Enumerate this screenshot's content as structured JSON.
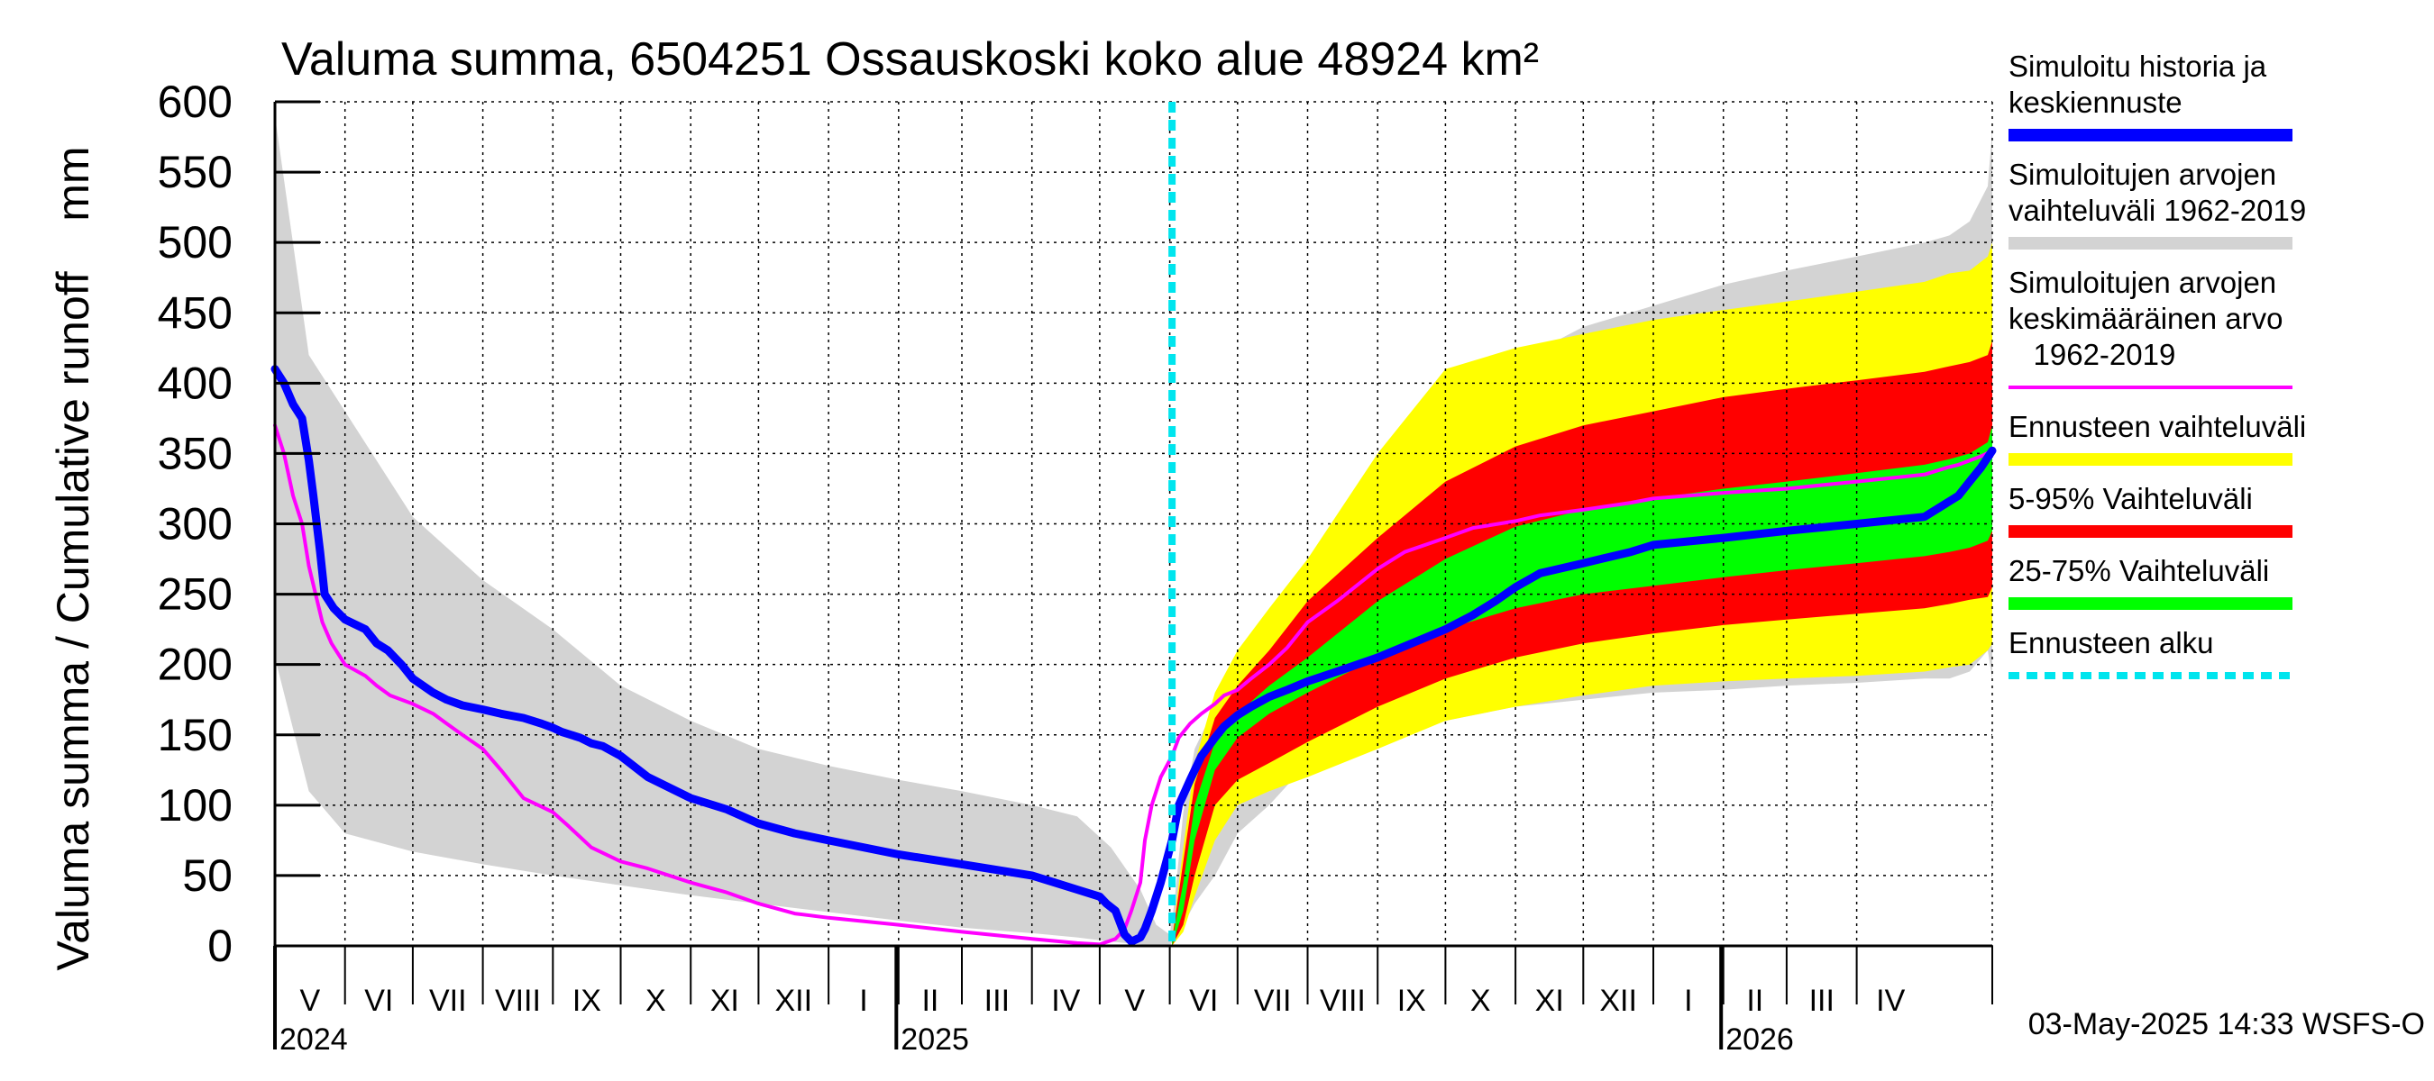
{
  "chart_data": {
    "type": "area",
    "title": "Valuma summa, 6504251 Ossauskoski koko alue 48924 km²",
    "ylabel": "Valuma summa / Cumulative runoff    mm",
    "ylim": [
      0,
      600
    ],
    "yticks": [
      0,
      50,
      100,
      150,
      200,
      250,
      300,
      350,
      400,
      450,
      500,
      550,
      600
    ],
    "x_unit": "days since 2024-04-01",
    "xlim": [
      0,
      760
    ],
    "forecast_start_day": 397,
    "years": [
      {
        "label": "2024",
        "day": 0
      },
      {
        "label": "2025",
        "day": 275
      },
      {
        "label": "2026",
        "day": 640
      }
    ],
    "months": [
      {
        "label": "V",
        "start": 0,
        "end": 31
      },
      {
        "label": "VI",
        "start": 31,
        "end": 61
      },
      {
        "label": "VII",
        "start": 61,
        "end": 92
      },
      {
        "label": "VIII",
        "start": 92,
        "end": 123
      },
      {
        "label": "IX",
        "start": 123,
        "end": 153
      },
      {
        "label": "X",
        "start": 153,
        "end": 184
      },
      {
        "label": "XI",
        "start": 184,
        "end": 214
      },
      {
        "label": "XII",
        "start": 214,
        "end": 245
      },
      {
        "label": "I",
        "start": 245,
        "end": 276
      },
      {
        "label": "II",
        "start": 276,
        "end": 304
      },
      {
        "label": "III",
        "start": 304,
        "end": 335
      },
      {
        "label": "IV",
        "start": 335,
        "end": 365
      },
      {
        "label": "V",
        "start": 365,
        "end": 396
      },
      {
        "label": "VI",
        "start": 396,
        "end": 426
      },
      {
        "label": "VII",
        "start": 426,
        "end": 457
      },
      {
        "label": "VIII",
        "start": 457,
        "end": 488
      },
      {
        "label": "IX",
        "start": 488,
        "end": 518
      },
      {
        "label": "X",
        "start": 518,
        "end": 549
      },
      {
        "label": "XI",
        "start": 549,
        "end": 579
      },
      {
        "label": "XII",
        "start": 579,
        "end": 610
      },
      {
        "label": "I",
        "start": 610,
        "end": 641
      },
      {
        "label": "II",
        "start": 641,
        "end": 669
      },
      {
        "label": "III",
        "start": 669,
        "end": 700
      },
      {
        "label": "IV",
        "start": 700,
        "end": 730
      }
    ],
    "bands": [
      {
        "name": "Simuloitujen arvojen vaihteluväli 1962-2019",
        "color": "#d3d3d3",
        "x": [
          0,
          15,
          31,
          61,
          92,
          123,
          153,
          184,
          214,
          245,
          276,
          304,
          335,
          355,
          370,
          383,
          390,
          396,
          398,
          402,
          407,
          416,
          426,
          440,
          457,
          488,
          518,
          549,
          579,
          610,
          641,
          669,
          700,
          730,
          741,
          750,
          758,
          760
        ],
        "upper": [
          590,
          420,
          380,
          305,
          260,
          225,
          185,
          160,
          140,
          128,
          118,
          110,
          100,
          92,
          70,
          40,
          15,
          8,
          30,
          95,
          140,
          170,
          200,
          228,
          255,
          300,
          375,
          415,
          440,
          455,
          470,
          480,
          490,
          500,
          505,
          515,
          540,
          580
        ],
        "lower": [
          205,
          110,
          80,
          67,
          58,
          50,
          43,
          36,
          30,
          24,
          18,
          13,
          9,
          6,
          3,
          1,
          0,
          0,
          5,
          15,
          30,
          50,
          80,
          100,
          130,
          150,
          160,
          170,
          175,
          180,
          182,
          185,
          187,
          190,
          190,
          195,
          210,
          190
        ]
      },
      {
        "name": "Ennusteen vaihteluväli",
        "color": "#ffff00",
        "x": [
          397,
          402,
          407,
          416,
          426,
          440,
          457,
          488,
          518,
          549,
          579,
          610,
          641,
          669,
          700,
          730,
          741,
          750,
          758,
          760
        ],
        "upper": [
          5,
          70,
          130,
          180,
          210,
          240,
          275,
          350,
          410,
          425,
          435,
          445,
          452,
          458,
          465,
          472,
          478,
          480,
          490,
          500
        ],
        "lower": [
          0,
          10,
          35,
          75,
          100,
          110,
          120,
          140,
          160,
          170,
          178,
          185,
          188,
          190,
          192,
          195,
          198,
          200,
          210,
          215
        ]
      },
      {
        "name": "5-95% Vaihteluväli",
        "color": "#ff0000",
        "x": [
          397,
          402,
          407,
          416,
          426,
          440,
          457,
          488,
          518,
          549,
          579,
          610,
          641,
          669,
          700,
          730,
          741,
          750,
          758,
          760
        ],
        "upper": [
          4,
          60,
          115,
          162,
          185,
          210,
          245,
          290,
          330,
          355,
          370,
          380,
          390,
          396,
          402,
          408,
          412,
          415,
          420,
          430
        ],
        "lower": [
          0,
          15,
          50,
          100,
          118,
          130,
          145,
          170,
          190,
          205,
          215,
          222,
          228,
          232,
          236,
          240,
          243,
          246,
          248,
          255
        ]
      },
      {
        "name": "25-75% Vaihteluväli",
        "color": "#00ff00",
        "x": [
          397,
          402,
          407,
          416,
          426,
          440,
          457,
          488,
          518,
          549,
          579,
          610,
          641,
          669,
          700,
          730,
          741,
          750,
          758,
          760
        ],
        "upper": [
          3,
          45,
          100,
          145,
          165,
          185,
          205,
          245,
          275,
          298,
          310,
          318,
          325,
          330,
          336,
          342,
          346,
          350,
          358,
          370
        ],
        "lower": [
          0,
          25,
          75,
          125,
          148,
          165,
          180,
          205,
          225,
          240,
          250,
          256,
          262,
          267,
          272,
          277,
          280,
          283,
          288,
          295
        ]
      }
    ],
    "series": [
      {
        "name": "Simuloitujen arvojen keskimääräinen arvo 1962-2019",
        "color": "#ff00ff",
        "x": [
          0,
          4,
          8,
          12,
          15,
          18,
          21,
          25,
          31,
          40,
          45,
          51,
          61,
          70,
          76,
          83,
          92,
          100,
          110,
          123,
          130,
          140,
          153,
          165,
          184,
          200,
          214,
          230,
          245,
          276,
          304,
          335,
          355,
          365,
          372,
          376,
          379,
          383,
          385,
          388,
          392,
          397,
          400,
          405,
          410,
          416,
          420,
          426,
          432,
          440,
          448,
          457,
          470,
          488,
          500,
          518,
          530,
          549,
          560,
          579,
          600,
          610,
          641,
          669,
          700,
          730,
          740,
          745,
          750,
          755,
          760
        ],
        "values": [
          370,
          350,
          320,
          300,
          270,
          250,
          230,
          215,
          200,
          192,
          185,
          178,
          172,
          165,
          158,
          150,
          140,
          125,
          105,
          95,
          85,
          70,
          60,
          55,
          45,
          38,
          30,
          23,
          20,
          15,
          10,
          5,
          2,
          1,
          5,
          12,
          25,
          45,
          75,
          100,
          120,
          135,
          148,
          158,
          165,
          172,
          178,
          182,
          190,
          200,
          212,
          230,
          245,
          268,
          280,
          290,
          297,
          302,
          306,
          310,
          315,
          318,
          322,
          325,
          330,
          335,
          340,
          342,
          345,
          348,
          352
        ]
      },
      {
        "name": "Simuloitu historia ja keskiennuste",
        "color": "#0000ff",
        "x": [
          0,
          4,
          8,
          12,
          15,
          17,
          20,
          22,
          26,
          31,
          40,
          45,
          50,
          56,
          61,
          70,
          76,
          83,
          92,
          100,
          110,
          118,
          123,
          127,
          135,
          140,
          145,
          153,
          165,
          184,
          200,
          214,
          230,
          245,
          276,
          304,
          335,
          345,
          355,
          365,
          368,
          372,
          376,
          379,
          383,
          385,
          388,
          392,
          397,
          400,
          405,
          410,
          416,
          420,
          426,
          432,
          440,
          448,
          457,
          470,
          488,
          500,
          518,
          530,
          540,
          549,
          560,
          579,
          600,
          610,
          641,
          669,
          700,
          730,
          740,
          745,
          750,
          755,
          760
        ],
        "values": [
          410,
          400,
          385,
          375,
          345,
          320,
          280,
          250,
          240,
          232,
          225,
          215,
          210,
          200,
          190,
          180,
          175,
          171,
          168,
          165,
          162,
          158,
          155,
          152,
          148,
          144,
          142,
          135,
          120,
          105,
          97,
          87,
          80,
          75,
          65,
          58,
          50,
          45,
          40,
          35,
          30,
          25,
          8,
          3,
          6,
          12,
          25,
          45,
          75,
          100,
          118,
          135,
          148,
          156,
          164,
          170,
          177,
          182,
          188,
          195,
          205,
          213,
          225,
          235,
          245,
          255,
          265,
          272,
          280,
          285,
          290,
          295,
          300,
          305,
          315,
          320,
          330,
          340,
          352
        ]
      }
    ],
    "legend": [
      {
        "label": "Simuloitu historia ja keskiennuste",
        "lines": [
          "Simuloitu historia ja",
          "keskiennuste"
        ],
        "color": "#0000ff",
        "style": "thick"
      },
      {
        "label": "Simuloitujen arvojen vaihteluväli 1962-2019",
        "lines": [
          "Simuloitujen arvojen",
          "vaihteluväli 1962-2019"
        ],
        "color": "#d3d3d3",
        "style": "thick"
      },
      {
        "label": "Simuloitujen arvojen keskimääräinen arvo 1962-2019",
        "lines": [
          "Simuloitujen arvojen",
          "keskimääräinen arvo",
          "   1962-2019"
        ],
        "color": "#ff00ff",
        "style": "thin"
      },
      {
        "label": "Ennusteen vaihteluväli",
        "lines": [
          "Ennusteen vaihteluväli"
        ],
        "color": "#ffff00",
        "style": "thick"
      },
      {
        "label": "5-95% Vaihteluväli",
        "lines": [
          "5-95% Vaihteluväli"
        ],
        "color": "#ff0000",
        "style": "thick"
      },
      {
        "label": "25-75% Vaihteluväli",
        "lines": [
          "25-75% Vaihteluväli"
        ],
        "color": "#00ff00",
        "style": "thick"
      },
      {
        "label": "Ennusteen alku",
        "lines": [
          "Ennusteen alku"
        ],
        "color": "#00e5ee",
        "style": "dashed"
      }
    ],
    "forecast_line_color": "#00e5ee",
    "footer": "03-May-2025 14:33 WSFS-O"
  }
}
